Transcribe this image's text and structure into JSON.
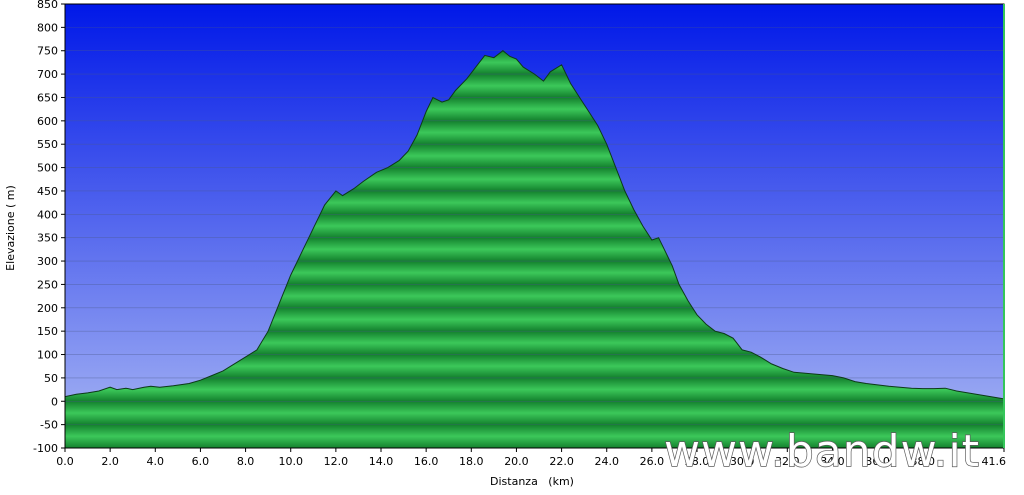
{
  "chart_data": {
    "type": "area",
    "title": "",
    "xlabel": "Distanza   (km)",
    "ylabel": "Elevazione ( m)",
    "xlim": [
      0,
      41.6
    ],
    "ylim": [
      -100,
      850
    ],
    "x_ticks": [
      "0.0",
      "2.0",
      "4.0",
      "6.0",
      "8.0",
      "10.0",
      "12.0",
      "14.0",
      "16.0",
      "18.0",
      "20.0",
      "22.0",
      "24.0",
      "26.0",
      "28.0",
      "30.0",
      "32.0",
      "34.0",
      "36.0",
      "38.0",
      "41.6"
    ],
    "y_ticks": [
      "850",
      "800",
      "750",
      "700",
      "650",
      "600",
      "550",
      "500",
      "450",
      "400",
      "350",
      "300",
      "250",
      "200",
      "150",
      "100",
      "50",
      "0",
      "-50",
      "-100"
    ],
    "grid": true,
    "colors": {
      "sky_top": "#0018e8",
      "sky_bottom": "#aab8f4",
      "fill_light": "#3cc85a",
      "fill_dark": "#13802d",
      "outline": "#0d3a18",
      "grid": "#4a5a8a"
    },
    "x": [
      0,
      0.5,
      1,
      1.5,
      2,
      2.3,
      2.7,
      3,
      3.5,
      3.8,
      4.2,
      4.8,
      5.5,
      6,
      6.5,
      7,
      7.5,
      8,
      8.5,
      9,
      9.5,
      10,
      10.5,
      11,
      11.5,
      12,
      12.3,
      12.8,
      13.2,
      13.8,
      14.3,
      14.8,
      15.2,
      15.6,
      16,
      16.3,
      16.7,
      17,
      17.3,
      17.8,
      18.2,
      18.6,
      19,
      19.4,
      19.7,
      20,
      20.3,
      20.8,
      21.2,
      21.5,
      22,
      22.4,
      22.8,
      23.2,
      23.6,
      24,
      24.4,
      24.8,
      25.2,
      25.6,
      26,
      26.3,
      26.6,
      26.9,
      27.2,
      27.6,
      28,
      28.4,
      28.8,
      29.2,
      29.6,
      30,
      30.4,
      30.8,
      31.3,
      31.8,
      32.3,
      32.8,
      33.3,
      34,
      34.5,
      35,
      35.5,
      36,
      36.5,
      37,
      37.5,
      38,
      38.5,
      39,
      39.5,
      40,
      40.5,
      41,
      41.6
    ],
    "elevation": [
      10,
      15,
      18,
      22,
      30,
      25,
      28,
      25,
      30,
      32,
      30,
      33,
      38,
      45,
      55,
      65,
      80,
      95,
      110,
      150,
      210,
      270,
      320,
      370,
      420,
      450,
      440,
      455,
      470,
      490,
      500,
      515,
      535,
      570,
      620,
      650,
      640,
      645,
      665,
      690,
      715,
      740,
      735,
      750,
      738,
      732,
      715,
      700,
      685,
      705,
      720,
      680,
      650,
      620,
      590,
      550,
      500,
      450,
      410,
      375,
      345,
      350,
      320,
      290,
      250,
      215,
      185,
      165,
      150,
      145,
      135,
      110,
      105,
      95,
      80,
      70,
      62,
      60,
      58,
      55,
      50,
      42,
      38,
      35,
      32,
      30,
      28,
      27,
      27,
      28,
      22,
      18,
      14,
      10,
      5
    ],
    "watermark": "www.bandw.it"
  }
}
